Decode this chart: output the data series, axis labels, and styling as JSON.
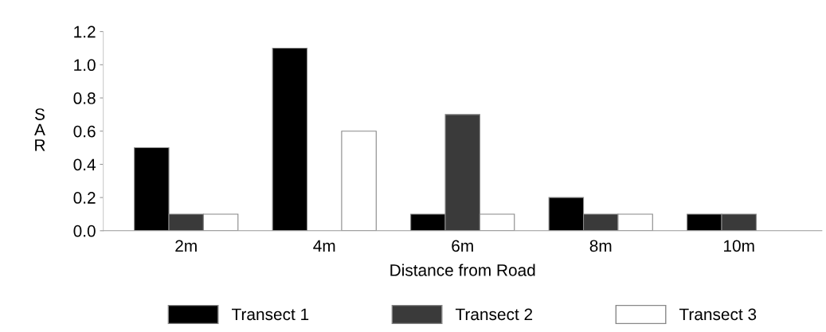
{
  "chart_data": {
    "type": "bar",
    "xlabel": "Distance from Road",
    "ylabel": "SAR",
    "categories": [
      "2m",
      "4m",
      "6m",
      "8m",
      "10m"
    ],
    "series": [
      {
        "name": "Transect 1",
        "color": "#000000",
        "values": [
          0.5,
          1.1,
          0.1,
          0.2,
          0.1
        ]
      },
      {
        "name": "Transect 2",
        "color": "#3a3a3a",
        "values": [
          0.1,
          0,
          0.7,
          0.1,
          0.1
        ]
      },
      {
        "name": "Transect 3",
        "color": "#ffffff",
        "values": [
          0.1,
          0.6,
          0.1,
          0.1,
          0
        ]
      }
    ],
    "ylim": [
      0,
      1.2
    ],
    "yticks": [
      {
        "value": 0,
        "label": "0.0"
      },
      0.2,
      0.4,
      0.6,
      0.8,
      {
        "value": 1,
        "label": "1.0"
      },
      1.2
    ],
    "grid": false,
    "legend": "bottom"
  }
}
